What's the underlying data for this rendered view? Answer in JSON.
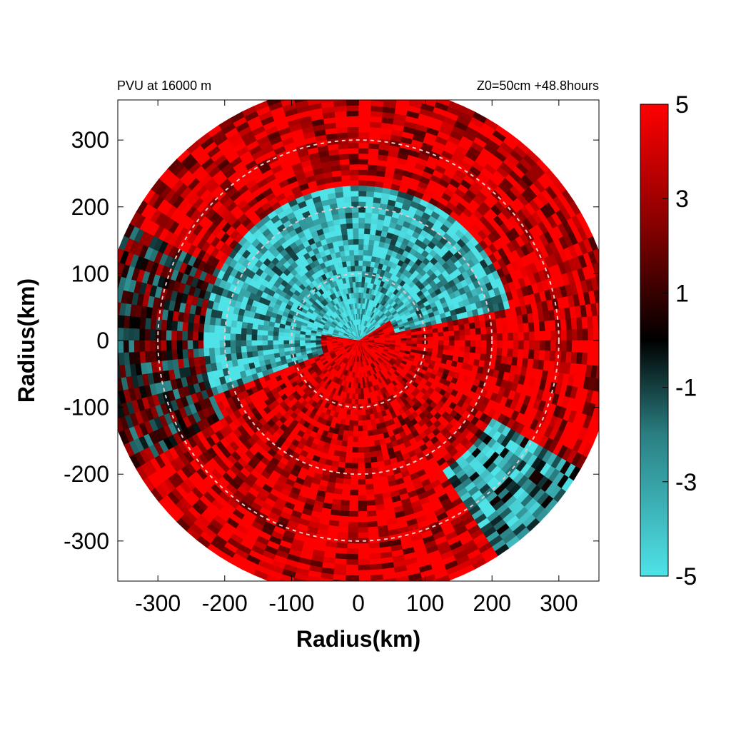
{
  "chart_data": {
    "type": "heatmap",
    "title_left": "PVU at 16000 m",
    "title_right": "Z0=50cm  +48.8hours",
    "xlabel": "Radius(km)",
    "ylabel": "Radius(km)",
    "xlim": [
      -360,
      360
    ],
    "ylim": [
      -360,
      360
    ],
    "x_ticks": [
      -300,
      -200,
      -100,
      0,
      100,
      200,
      300
    ],
    "y_ticks": [
      -300,
      -200,
      -100,
      0,
      100,
      200,
      300
    ],
    "x_tick_labels": [
      "-300",
      "-200",
      "-100",
      "0",
      "100",
      "200",
      "300"
    ],
    "y_tick_labels": [
      "-300",
      "-200",
      "-100",
      "0",
      "100",
      "200",
      "300"
    ],
    "data_max_radius_km": 380,
    "reference_circles_km": [
      100,
      200,
      300
    ],
    "colorbar": {
      "range": [
        -5,
        5
      ],
      "ticks": [
        5,
        3,
        1,
        -1,
        -3,
        -5
      ],
      "tick_labels": [
        "5",
        "3",
        "1",
        "-1",
        "-3",
        "-5"
      ],
      "colors": [
        {
          "value": -5,
          "color": "#4fe3e8"
        },
        {
          "value": -2,
          "color": "#2a7f82"
        },
        {
          "value": 0,
          "color": "#000000"
        },
        {
          "value": 2.5,
          "color": "#8a0000"
        },
        {
          "value": 5,
          "color": "#ff0000"
        }
      ]
    },
    "regions_description_values": {
      "core_value": 5,
      "inner_ring_value": -5,
      "outer_ring_value": 5
    },
    "grid": false
  }
}
